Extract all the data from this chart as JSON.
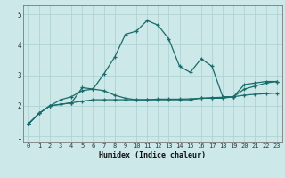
{
  "xlabel": "Humidex (Indice chaleur)",
  "x": [
    0,
    1,
    2,
    3,
    4,
    5,
    6,
    7,
    8,
    9,
    10,
    11,
    12,
    13,
    14,
    15,
    16,
    17,
    18,
    19,
    20,
    21,
    22,
    23
  ],
  "line1": [
    1.4,
    1.75,
    2.0,
    2.05,
    2.1,
    2.6,
    2.55,
    3.05,
    3.6,
    4.35,
    4.45,
    4.8,
    4.65,
    4.2,
    3.3,
    3.1,
    3.55,
    3.3,
    2.3,
    2.3,
    2.7,
    2.75,
    2.8,
    2.8
  ],
  "line2": [
    1.4,
    1.75,
    2.0,
    2.2,
    2.3,
    2.5,
    2.55,
    2.5,
    2.35,
    2.25,
    2.2,
    2.2,
    2.2,
    2.2,
    2.2,
    2.2,
    2.25,
    2.25,
    2.25,
    2.3,
    2.55,
    2.65,
    2.75,
    2.8
  ],
  "line3": [
    1.4,
    1.75,
    2.0,
    2.05,
    2.1,
    2.15,
    2.2,
    2.2,
    2.2,
    2.2,
    2.2,
    2.2,
    2.22,
    2.22,
    2.22,
    2.23,
    2.25,
    2.27,
    2.28,
    2.3,
    2.35,
    2.38,
    2.4,
    2.42
  ],
  "bg_color": "#cce8e8",
  "line_color": "#1a6b6b",
  "grid_color": "#aacfcf",
  "ylim": [
    0.8,
    5.3
  ],
  "yticks": [
    1,
    2,
    3,
    4,
    5
  ],
  "xticks": [
    0,
    1,
    2,
    3,
    4,
    5,
    6,
    7,
    8,
    9,
    10,
    11,
    12,
    13,
    14,
    15,
    16,
    17,
    18,
    19,
    20,
    21,
    22,
    23
  ]
}
